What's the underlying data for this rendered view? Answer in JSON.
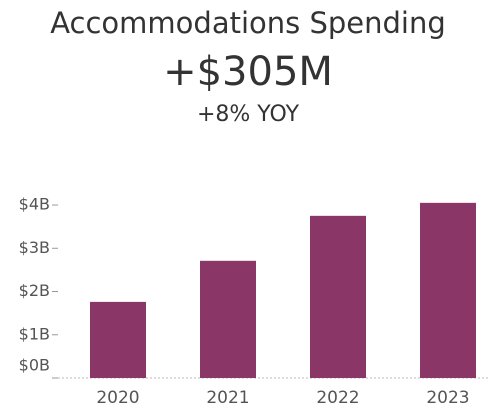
{
  "chart_data": {
    "type": "bar",
    "title": "Accommodations Spending",
    "kpi": "+$305M",
    "subtitle": "+8% YOY",
    "categories": [
      "2020",
      "2021",
      "2022",
      "2023"
    ],
    "values": [
      1.76,
      2.71,
      3.75,
      4.05
    ],
    "color": "#8a3768",
    "ylim": [
      0,
      4.1
    ],
    "yticks": [
      {
        "value": 0,
        "label": "$0B"
      },
      {
        "value": 1,
        "label": "$1B"
      },
      {
        "value": 2,
        "label": "$2B"
      },
      {
        "value": 3,
        "label": "$3B"
      },
      {
        "value": 4,
        "label": "$4B"
      }
    ],
    "grid": false
  }
}
